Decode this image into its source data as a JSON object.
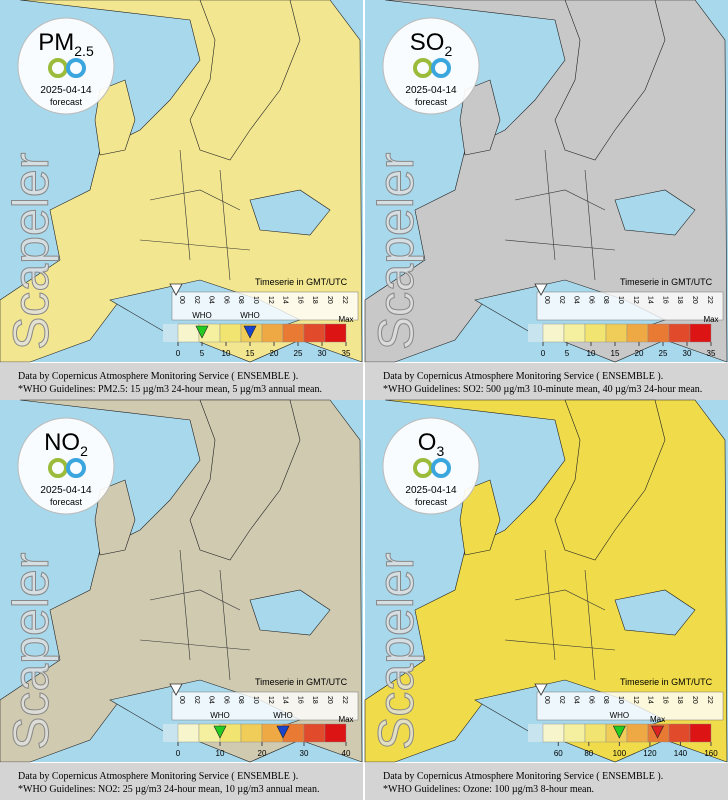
{
  "band_colors": [
    "#c8e4ee",
    "#f7f5cc",
    "#f4f0a0",
    "#f2e470",
    "#f0cc58",
    "#eea844",
    "#e87a34",
    "#e24a2c",
    "#dd1414"
  ],
  "panels": [
    {
      "pollutant": "PM",
      "subscript": "2.5",
      "date": "2025-04-14",
      "status": "forecast",
      "brand": "Scapeler",
      "timeserie_label": "Timeserie in GMT/UTC",
      "hours": [
        "00",
        "02",
        "04",
        "06",
        "08",
        "10",
        "12",
        "14",
        "16",
        "18",
        "20",
        "22"
      ],
      "land_color": "#f2e690",
      "scale": {
        "lim": [
          0,
          35
        ],
        "ticks": [
          0,
          5,
          10,
          15,
          20,
          25,
          30,
          35
        ],
        "max": {
          "label": "Max",
          "value": 35
        },
        "who": [
          {
            "label": "WHO",
            "value": 5,
            "color": "#22cc22"
          },
          {
            "label": "WHO",
            "value": 15,
            "color": "#1a44cc"
          }
        ]
      },
      "credit": "Data by Copernicus Atmosphere Monitoring Service ( ENSEMBLE ).",
      "guideline": "*WHO Guidelines: PM2.5: 15 µg/m3 24-hour mean, 5 µg/m3 annual mean."
    },
    {
      "pollutant": "SO",
      "subscript": "2",
      "date": "2025-04-14",
      "status": "forecast",
      "brand": "Scapeler",
      "timeserie_label": "Timeserie in GMT/UTC",
      "hours": [
        "00",
        "02",
        "04",
        "06",
        "08",
        "10",
        "12",
        "14",
        "16",
        "18",
        "20",
        "22"
      ],
      "land_color": "#c8c8c8",
      "scale": {
        "lim": [
          0,
          35
        ],
        "ticks": [
          0,
          5,
          10,
          15,
          20,
          25,
          30,
          35
        ],
        "max": {
          "label": "Max",
          "value": 35
        },
        "who": []
      },
      "credit": "Data by Copernicus Atmosphere Monitoring Service ( ENSEMBLE ).",
      "guideline": "*WHO Guidelines: SO2: 500 µg/m3 10-minute mean, 40 µg/m3 24-hour mean."
    },
    {
      "pollutant": "NO",
      "subscript": "2",
      "date": "2025-04-14",
      "status": "forecast",
      "brand": "Scapeler",
      "timeserie_label": "Timeserie in GMT/UTC",
      "hours": [
        "00",
        "02",
        "04",
        "06",
        "08",
        "10",
        "12",
        "14",
        "16",
        "18",
        "20",
        "22"
      ],
      "land_color": "#cfcab0",
      "scale": {
        "lim": [
          0,
          40
        ],
        "ticks": [
          0,
          10,
          20,
          30,
          40
        ],
        "max": {
          "label": "Max",
          "value": 40
        },
        "who": [
          {
            "label": "WHO",
            "value": 10,
            "color": "#22cc22"
          },
          {
            "label": "WHO",
            "value": 25,
            "color": "#1a44cc"
          }
        ]
      },
      "credit": "Data by Copernicus Atmosphere Monitoring Service ( ENSEMBLE ).",
      "guideline": "*WHO Guidelines: NO2: 25 µg/m3 24-hour mean, 10 µg/m3 annual mean."
    },
    {
      "pollutant": "O",
      "subscript": "3",
      "date": "2025-04-14",
      "status": "forecast",
      "brand": "Scapeler",
      "timeserie_label": "Timeserie in GMT/UTC",
      "hours": [
        "00",
        "02",
        "04",
        "06",
        "08",
        "10",
        "12",
        "14",
        "16",
        "18",
        "20",
        "22"
      ],
      "land_color": "#f0dc4a",
      "scale": {
        "lim": [
          50,
          160
        ],
        "ticks": [
          60,
          80,
          100,
          120,
          140,
          160
        ],
        "max": {
          "label": "Max",
          "value": 125,
          "color": "#dd2222"
        },
        "who": [
          {
            "label": "WHO",
            "value": 100,
            "color": "#22cc22"
          }
        ]
      },
      "credit": "Data by Copernicus Atmosphere Monitoring Service ( ENSEMBLE ).",
      "guideline": "*WHO Guidelines: Ozone: 100 µg/m3 8-hour mean."
    }
  ]
}
